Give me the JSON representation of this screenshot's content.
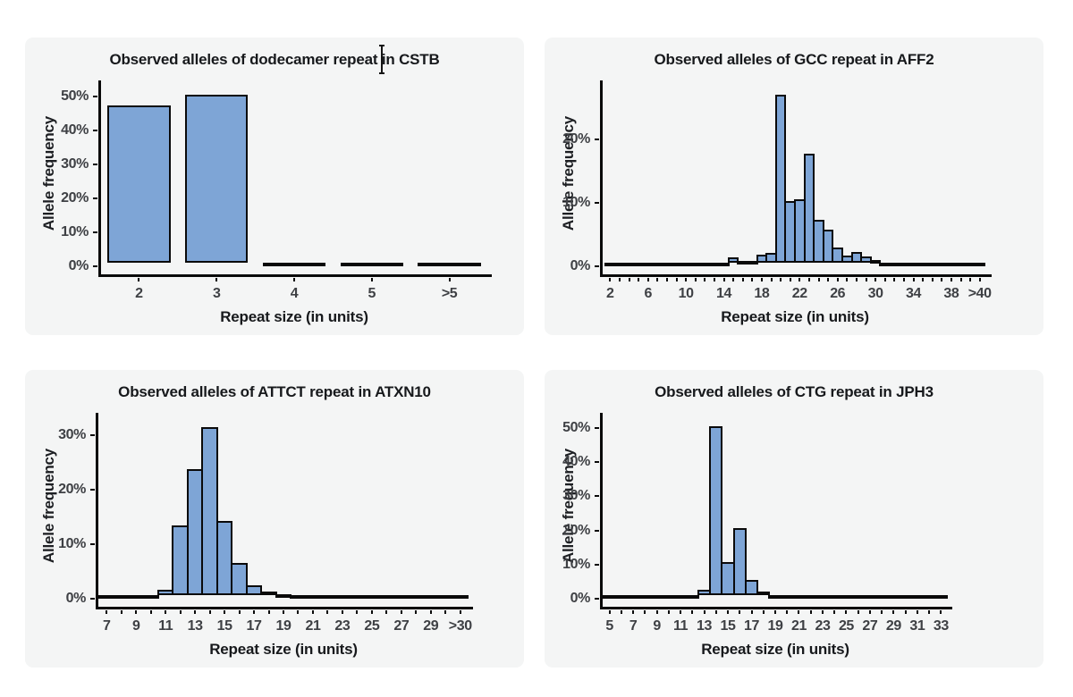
{
  "page": {
    "background": "#ffffff"
  },
  "style": {
    "bar_fill": "#7ea5d6",
    "bar_border": "#0a0a0a",
    "panel_background": "#f4f5f5",
    "axis_color": "#0a0a0a",
    "tick_label_color": "#3e4044",
    "title_color": "#17191c"
  },
  "cursor": {
    "type": "i-beam-text-cursor",
    "over": "first chart title, between 'r' and 'epeat'"
  },
  "chart_data": [
    {
      "type": "bar",
      "title": "Observed alleles of dodecamer repeat in CSTB",
      "xlabel": "Repeat size (in units)",
      "ylabel": "Allele frequency",
      "categories": [
        "2",
        "3",
        "4",
        "5",
        ">5"
      ],
      "values": [
        47.3,
        50.6,
        0.5,
        0.5,
        0.5
      ],
      "xtick_labels": [
        "2",
        "3",
        "4",
        "5",
        ">5"
      ],
      "yticks": [
        0,
        10,
        20,
        30,
        40,
        50
      ],
      "ytick_labels": [
        "0%",
        "10%",
        "20%",
        "30%",
        "40%",
        "50%"
      ],
      "ylim": [
        0,
        53
      ],
      "grid": false,
      "legend": false
    },
    {
      "type": "bar",
      "title": "Observed alleles of GCC repeat in AFF2",
      "xlabel": "Repeat size (in units)",
      "ylabel": "Allele frequency",
      "categories": [
        "2",
        "3",
        "4",
        "5",
        "6",
        "7",
        "8",
        "9",
        "10",
        "11",
        "12",
        "13",
        "14",
        "15",
        "16",
        "17",
        "18",
        "19",
        "20",
        "21",
        "22",
        "23",
        "24",
        "25",
        "26",
        "27",
        "28",
        "29",
        "30",
        "31",
        "32",
        "33",
        "34",
        "35",
        "36",
        "37",
        "38",
        "39",
        "40",
        ">40"
      ],
      "values": [
        0.15,
        0.1,
        0.1,
        0.1,
        0.1,
        0.15,
        0.25,
        0.1,
        0.1,
        0.15,
        0.35,
        0.3,
        0.3,
        1.4,
        0.8,
        0.9,
        1.9,
        2.1,
        27,
        10.3,
        10.5,
        17.8,
        7.3,
        5.8,
        3.0,
        1.7,
        2.3,
        1.5,
        1.0,
        0.6,
        0.35,
        0.2,
        0.25,
        0.25,
        0.1,
        0.1,
        0.3,
        0.15,
        0.1,
        0.5
      ],
      "xtick_labels": [
        "2",
        "6",
        "10",
        "14",
        "18",
        "22",
        "26",
        "30",
        "34",
        "38",
        ">40"
      ],
      "yticks": [
        0,
        10,
        20
      ],
      "ytick_labels": [
        "0%",
        "10%",
        "20%"
      ],
      "ylim": [
        0,
        28
      ],
      "grid": false,
      "legend": false
    },
    {
      "type": "bar",
      "title": "Observed alleles of ATTCT repeat in ATXN10",
      "xlabel": "Repeat size (in units)",
      "ylabel": "Allele frequency",
      "categories": [
        "7",
        "8",
        "9",
        "10",
        "11",
        "12",
        "13",
        "14",
        "15",
        "16",
        "17",
        "18",
        "19",
        "20",
        "21",
        "22",
        "23",
        "24",
        "25",
        "26",
        "27",
        "28",
        "29",
        "30",
        ">30"
      ],
      "values": [
        0.3,
        0.05,
        0.2,
        0.4,
        1.7,
        13.4,
        23.7,
        31.5,
        14.2,
        6.5,
        2.4,
        1.3,
        0.9,
        0.3,
        0.2,
        0.1,
        0.05,
        0.05,
        0.05,
        0.05,
        0.1,
        0.1,
        0.1,
        0.05,
        0.4
      ],
      "xtick_labels": [
        "7",
        "9",
        "11",
        "13",
        "15",
        "17",
        "19",
        "21",
        "23",
        "25",
        "27",
        "29",
        ">30"
      ],
      "yticks": [
        0,
        10,
        20,
        30
      ],
      "ytick_labels": [
        "0%",
        "10%",
        "20%",
        "30%"
      ],
      "ylim": [
        0,
        33
      ],
      "grid": false,
      "legend": false
    },
    {
      "type": "bar",
      "title": "Observed alleles of CTG repeat in JPH3",
      "xlabel": "Repeat size (in units)",
      "ylabel": "Allele frequency",
      "categories": [
        "5",
        "6",
        "7",
        "8",
        "9",
        "10",
        "11",
        "12",
        "13",
        "14",
        "15",
        "16",
        "17",
        "18",
        "19",
        "20",
        "21",
        "22",
        "23",
        "24",
        "25",
        "26",
        "27",
        "28",
        "29",
        "30",
        "31",
        "32",
        "33"
      ],
      "values": [
        0.05,
        0.05,
        0.1,
        0.6,
        0.15,
        0.2,
        1.1,
        0.6,
        2.5,
        50.5,
        10.8,
        20.8,
        5.6,
        2.0,
        1.1,
        0.4,
        0.15,
        0.1,
        0.1,
        0.1,
        0.2,
        0.6,
        0.4,
        0.3,
        0.1,
        0.05,
        0.05,
        0.05,
        0.05
      ],
      "xtick_labels": [
        "5",
        "7",
        "9",
        "11",
        "13",
        "15",
        "17",
        "19",
        "21",
        "23",
        "25",
        "27",
        "29",
        "31",
        "33"
      ],
      "yticks": [
        0,
        10,
        20,
        30,
        40,
        50
      ],
      "ytick_labels": [
        "0%",
        "10%",
        "20%",
        "30%",
        "40%",
        "50%"
      ],
      "ylim": [
        0,
        53
      ],
      "grid": false,
      "legend": false
    }
  ]
}
